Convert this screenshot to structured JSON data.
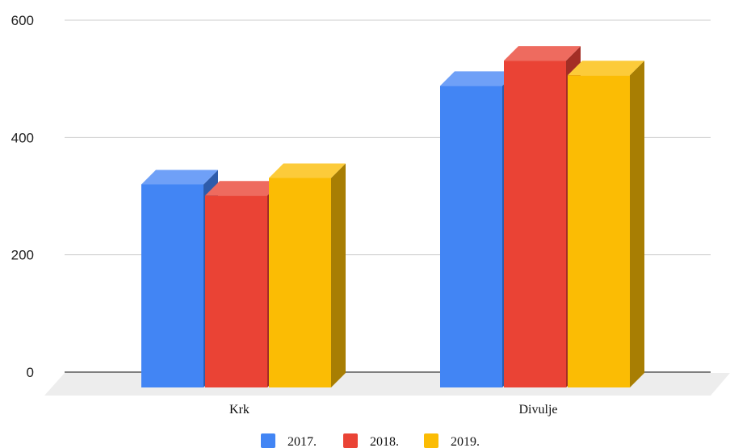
{
  "chart_data": {
    "type": "bar",
    "title": "",
    "xlabel": "",
    "ylabel": "",
    "categories": [
      "Krk",
      "Divulje"
    ],
    "series": [
      {
        "name": "2017.",
        "values": [
          320,
          488
        ],
        "color": "#4285F4",
        "top_color": "#6FA0F7",
        "side_color": "#2E5CAB"
      },
      {
        "name": "2018.",
        "values": [
          301,
          531
        ],
        "color": "#EA4335",
        "top_color": "#EE6B5F",
        "side_color": "#A32E25"
      },
      {
        "name": "2019.",
        "values": [
          331,
          506
        ],
        "color": "#FBBC04",
        "top_color": "#FCCB3A",
        "side_color": "#A87E03"
      }
    ],
    "yticks": [
      "0",
      "200",
      "400",
      "600"
    ],
    "ylim": [
      0,
      600
    ],
    "grid": true,
    "legend": "bottom",
    "style": "3d-column",
    "colors": {
      "grid": "#CCCCCC",
      "axis": "#333333",
      "floor": "#EDEDED"
    }
  }
}
